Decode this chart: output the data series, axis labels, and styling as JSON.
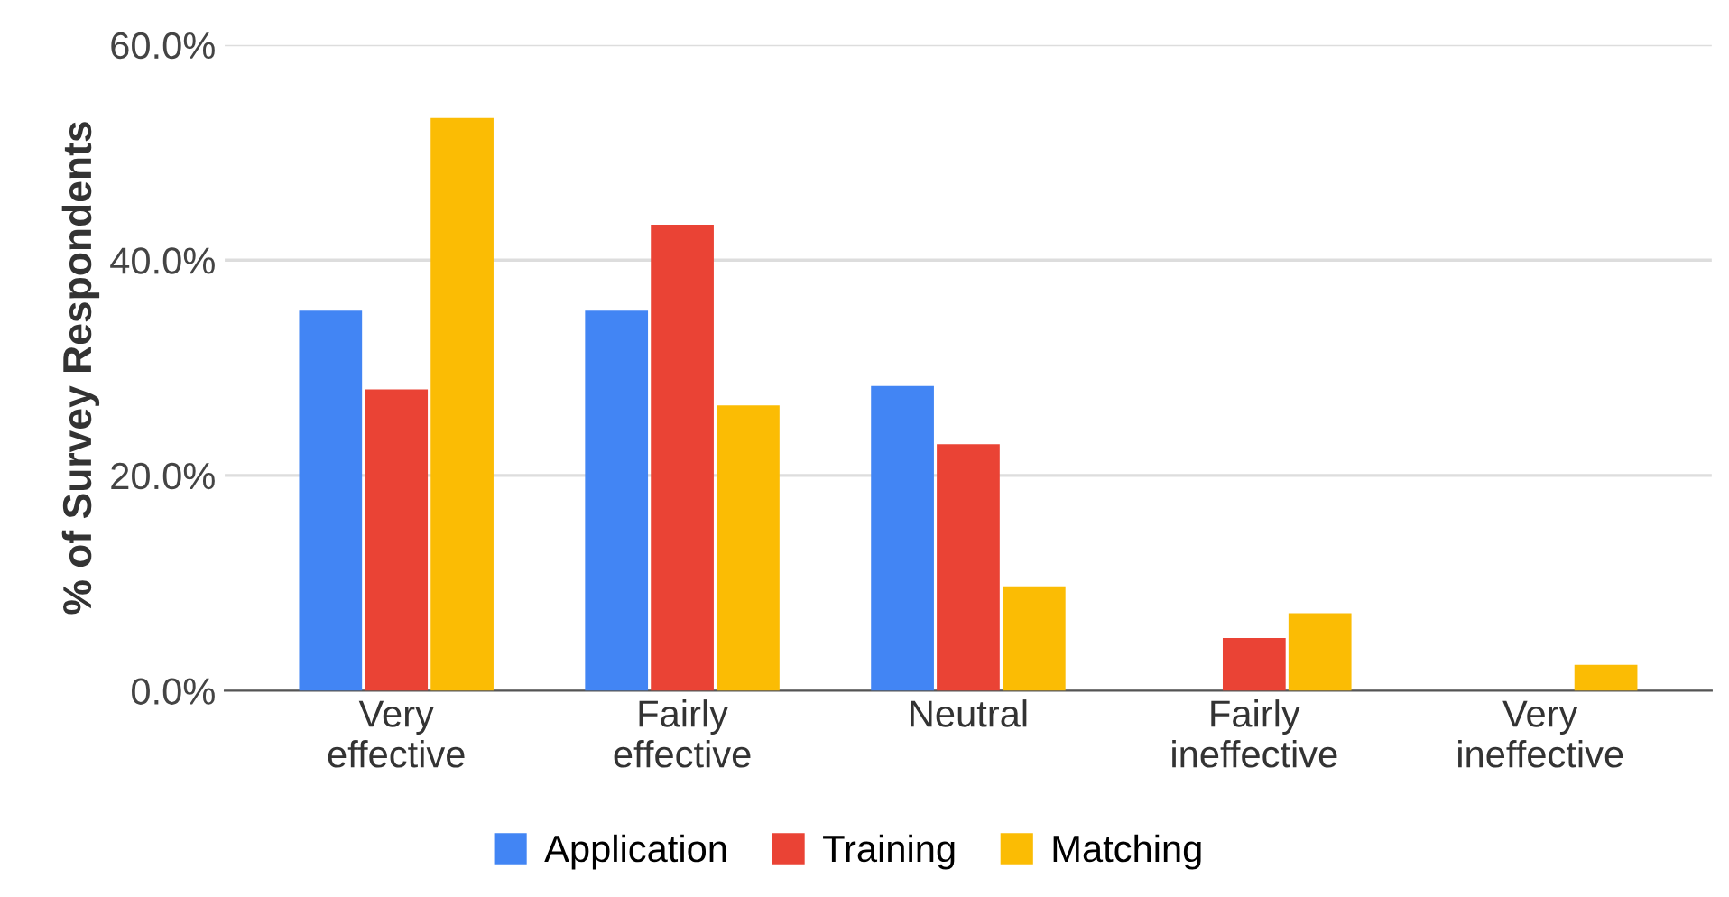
{
  "chart_data": {
    "type": "bar",
    "ylabel": "% of Survey Respondents",
    "categories": [
      "Very\neffective",
      "Fairly\neffective",
      "Neutral",
      "Fairly\nineffective",
      "Very\nineffective"
    ],
    "series": [
      {
        "name": "Application",
        "color": "#4285f4",
        "values": [
          35.3,
          35.3,
          28.3,
          0,
          0
        ]
      },
      {
        "name": "Training",
        "color": "#ea4335",
        "values": [
          28.0,
          43.3,
          22.9,
          4.9,
          0
        ]
      },
      {
        "name": "Matching",
        "color": "#fbbc04",
        "values": [
          53.2,
          26.5,
          9.7,
          7.2,
          2.4
        ]
      }
    ],
    "ylim": [
      0,
      60
    ],
    "yticks": [
      {
        "value": 0,
        "label": "0.0%"
      },
      {
        "value": 20,
        "label": "20.0%"
      },
      {
        "value": 40,
        "label": "40.0%"
      },
      {
        "value": 60,
        "label": "60.0%"
      }
    ],
    "grid": "y",
    "legend": "bottom"
  }
}
